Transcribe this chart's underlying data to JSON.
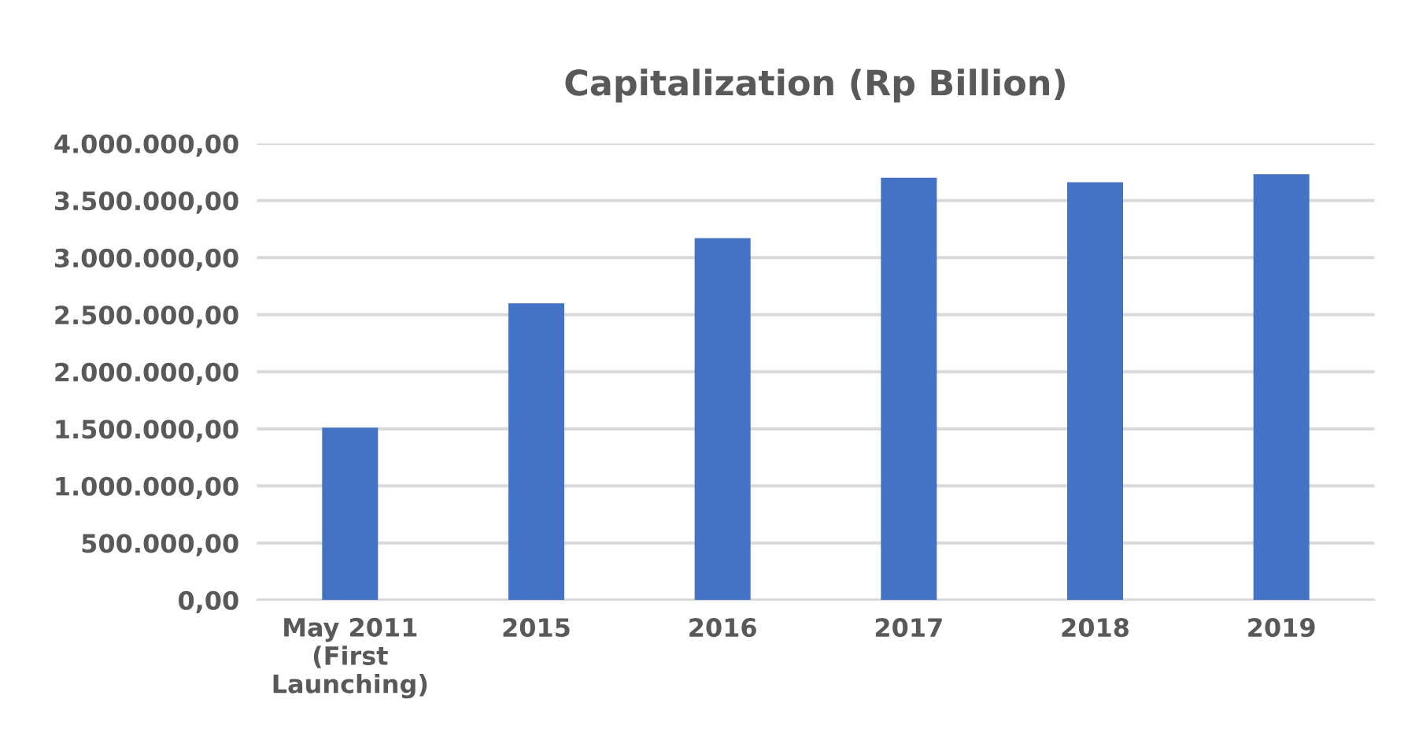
{
  "chart_data": {
    "type": "bar",
    "title": "Capitalization (Rp Billion)",
    "categories": [
      "May 2011\n(First\nLaunching)",
      "2015",
      "2016",
      "2017",
      "2018",
      "2019"
    ],
    "values": [
      1510000,
      2600000,
      3170000,
      3700000,
      3660000,
      3730000
    ],
    "color": "#4472c4",
    "ylim": [
      0,
      4000000
    ],
    "yticks": [
      {
        "value": 0,
        "label": "0,00"
      },
      {
        "value": 500000,
        "label": "500.000,00"
      },
      {
        "value": 1000000,
        "label": "1.000.000,00"
      },
      {
        "value": 1500000,
        "label": "1.500.000,00"
      },
      {
        "value": 2000000,
        "label": "2.000.000,00"
      },
      {
        "value": 2500000,
        "label": "2.500.000,00"
      },
      {
        "value": 3000000,
        "label": "3.000.000,00"
      },
      {
        "value": 3500000,
        "label": "3.500.000,00"
      },
      {
        "value": 4000000,
        "label": "4.000.000,00"
      }
    ],
    "grid": "y"
  }
}
